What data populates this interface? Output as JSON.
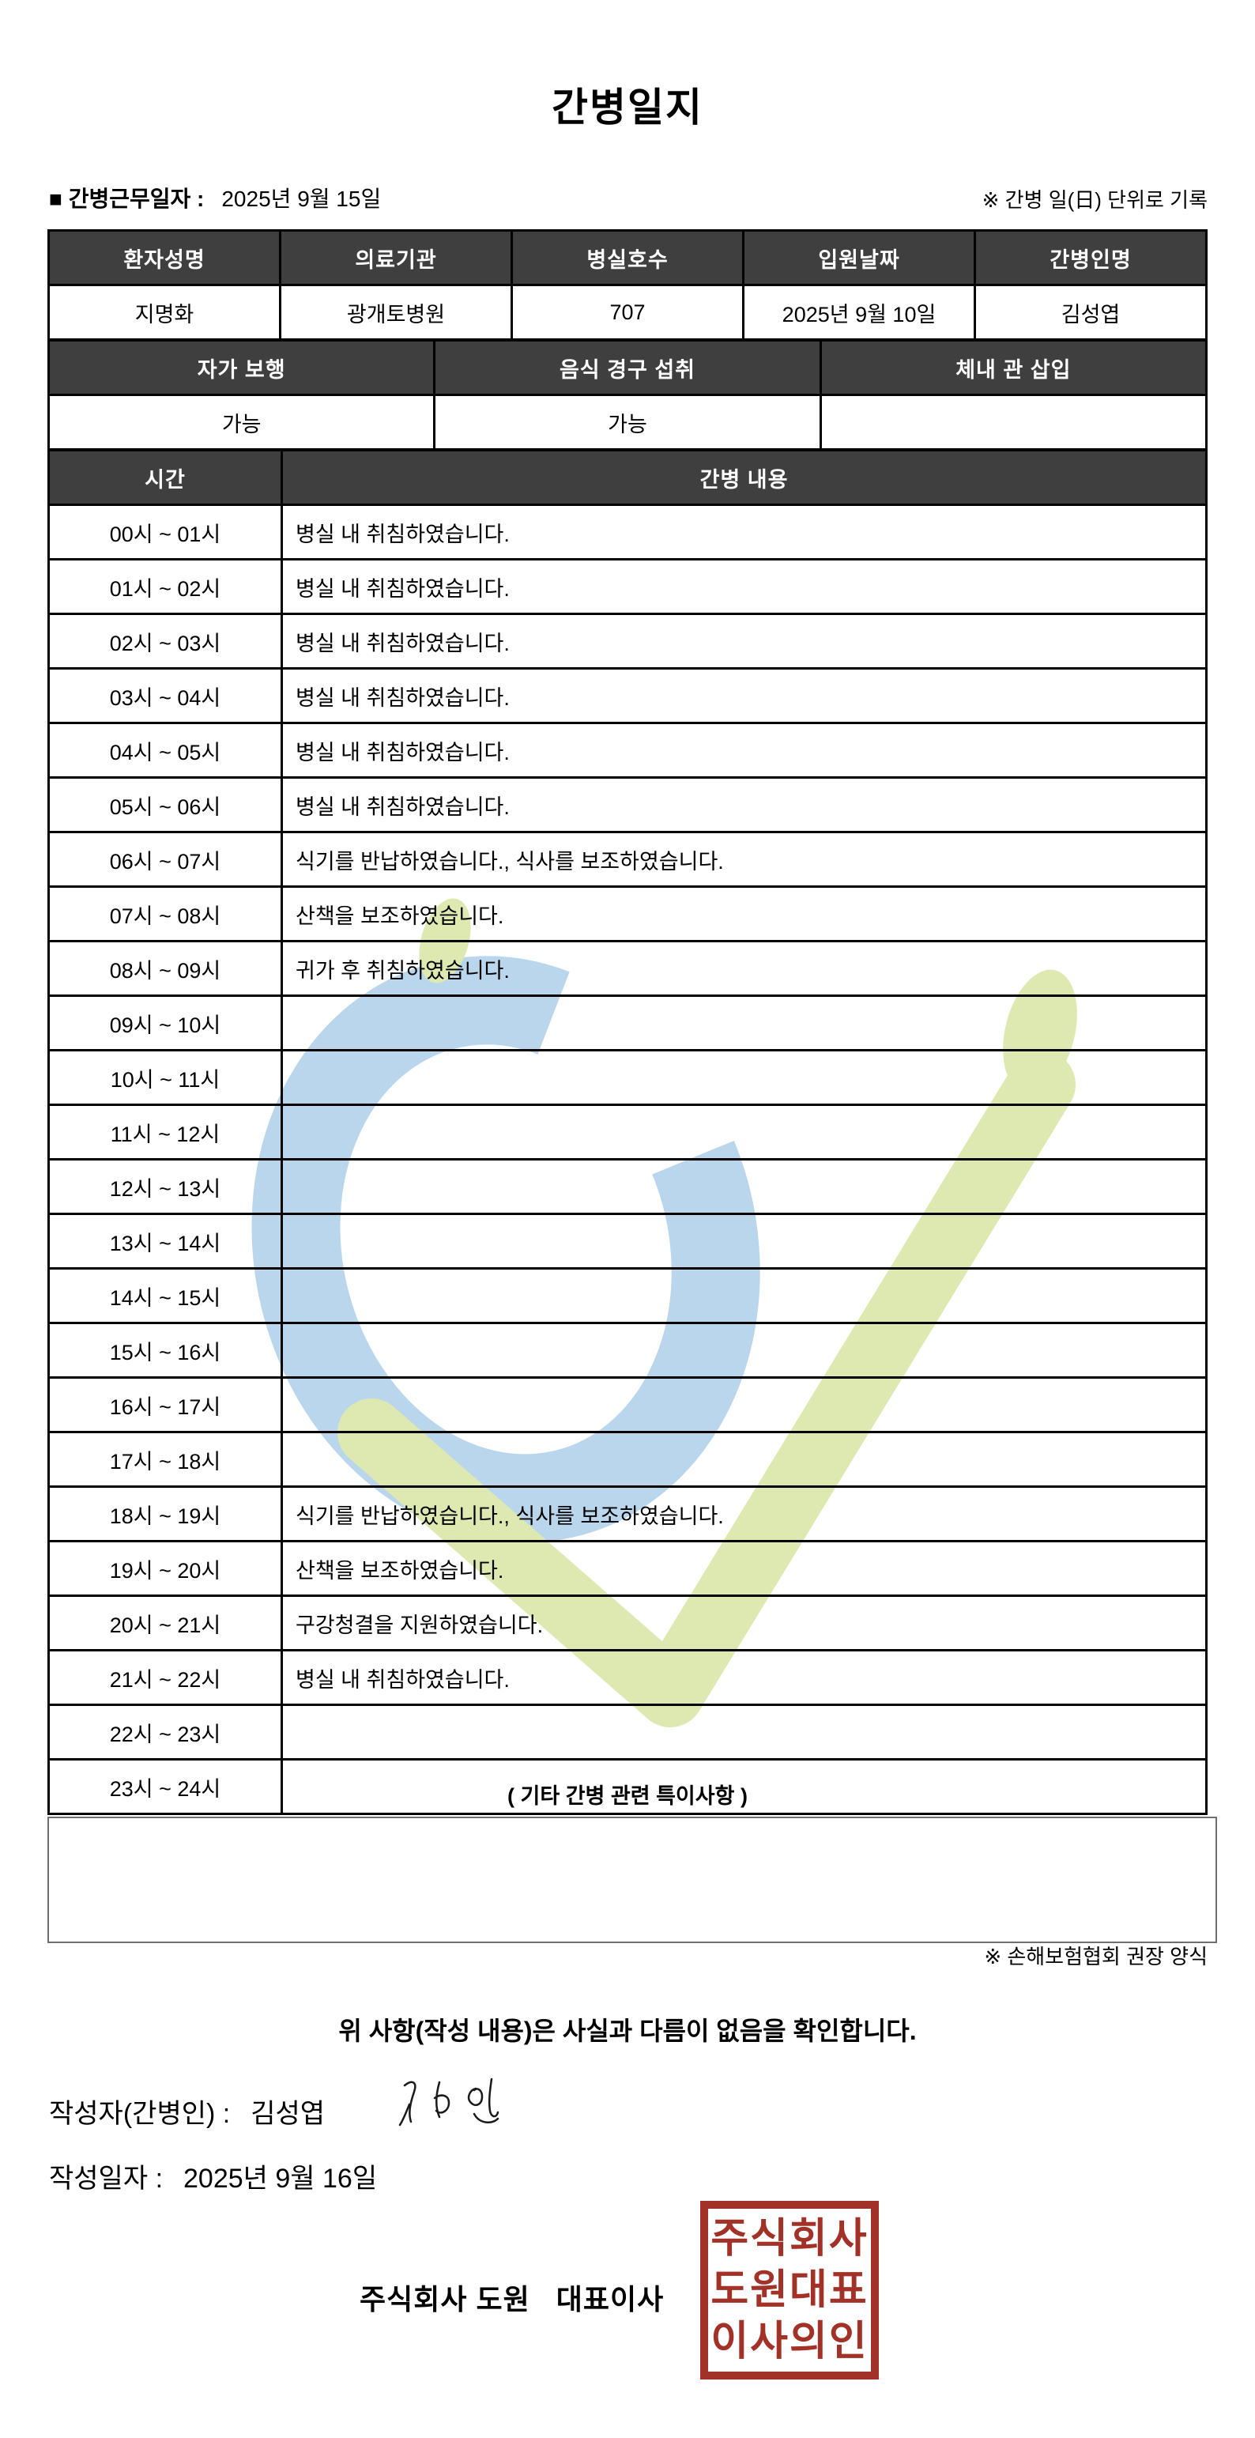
{
  "title": "간병일지",
  "meta": {
    "work_date_label": "■ 간병근무일자  :",
    "work_date_value": "2025년 9월 15일",
    "unit_note": "※ 간병 일(日) 단위로 기록"
  },
  "patient_table": {
    "headers": [
      "환자성명",
      "의료기관",
      "병실호수",
      "입원날짜",
      "간병인명"
    ],
    "values": [
      "지명화",
      "광개토병원",
      "707",
      "2025년 9월 10일",
      "김성엽"
    ]
  },
  "condition_table": {
    "headers": [
      "자가 보행",
      "음식 경구 섭취",
      "체내 관 삽입"
    ],
    "values": [
      "가능",
      "가능",
      ""
    ]
  },
  "log_table": {
    "time_header": "시간",
    "content_header": "간병 내용",
    "rows": [
      {
        "time": "00시 ~ 01시",
        "content": "병실 내 취침하였습니다."
      },
      {
        "time": "01시 ~ 02시",
        "content": "병실 내 취침하였습니다."
      },
      {
        "time": "02시 ~ 03시",
        "content": "병실 내 취침하였습니다."
      },
      {
        "time": "03시 ~ 04시",
        "content": "병실 내 취침하였습니다."
      },
      {
        "time": "04시 ~ 05시",
        "content": "병실 내 취침하였습니다."
      },
      {
        "time": "05시 ~ 06시",
        "content": "병실 내 취침하였습니다."
      },
      {
        "time": "06시 ~ 07시",
        "content": "식기를 반납하였습니다., 식사를 보조하였습니다."
      },
      {
        "time": "07시 ~ 08시",
        "content": "산책을 보조하였습니다."
      },
      {
        "time": "08시 ~ 09시",
        "content": "귀가 후 취침하였습니다."
      },
      {
        "time": "09시 ~ 10시",
        "content": ""
      },
      {
        "time": "10시 ~ 11시",
        "content": ""
      },
      {
        "time": "11시 ~ 12시",
        "content": ""
      },
      {
        "time": "12시 ~ 13시",
        "content": ""
      },
      {
        "time": "13시 ~ 14시",
        "content": ""
      },
      {
        "time": "14시 ~ 15시",
        "content": ""
      },
      {
        "time": "15시 ~ 16시",
        "content": ""
      },
      {
        "time": "16시 ~ 17시",
        "content": ""
      },
      {
        "time": "17시 ~ 18시",
        "content": ""
      },
      {
        "time": "18시 ~ 19시",
        "content": "식기를 반납하였습니다., 식사를 보조하였습니다."
      },
      {
        "time": "19시 ~ 20시",
        "content": "산책을 보조하였습니다."
      },
      {
        "time": "20시 ~ 21시",
        "content": "구강청결을 지원하였습니다."
      },
      {
        "time": "21시 ~ 22시",
        "content": "병실 내 취침하였습니다."
      },
      {
        "time": "22시 ~ 23시",
        "content": ""
      },
      {
        "time": "23시 ~ 24시",
        "content": ""
      }
    ]
  },
  "notes": {
    "heading": "( 기타 간병 관련 특이사항 )",
    "box_text": "",
    "form_note": "※ 손해보험협회 권장 양식"
  },
  "footer": {
    "confirmation": "위 사항(작성 내용)은 사실과 다름이 없음을 확인합니다.",
    "writer_label": "작성자(간병인) :",
    "writer_name": "김성엽",
    "written_date_label": "작성일자 :",
    "written_date_value": "2025년 9월 16일",
    "company_line": "주식회사 도원   대표이사",
    "stamp_lines": [
      "주식회사",
      "도원대표",
      "이사의인"
    ]
  },
  "colors": {
    "header_bg": "#3f3f3f",
    "header_text": "#ffffff",
    "table_border": "#000000",
    "notes_box_border": "#6e6e6e",
    "stamp_red": "#a23227",
    "watermark_blue": "#b9d6ec",
    "watermark_green": "#dde9b0"
  }
}
